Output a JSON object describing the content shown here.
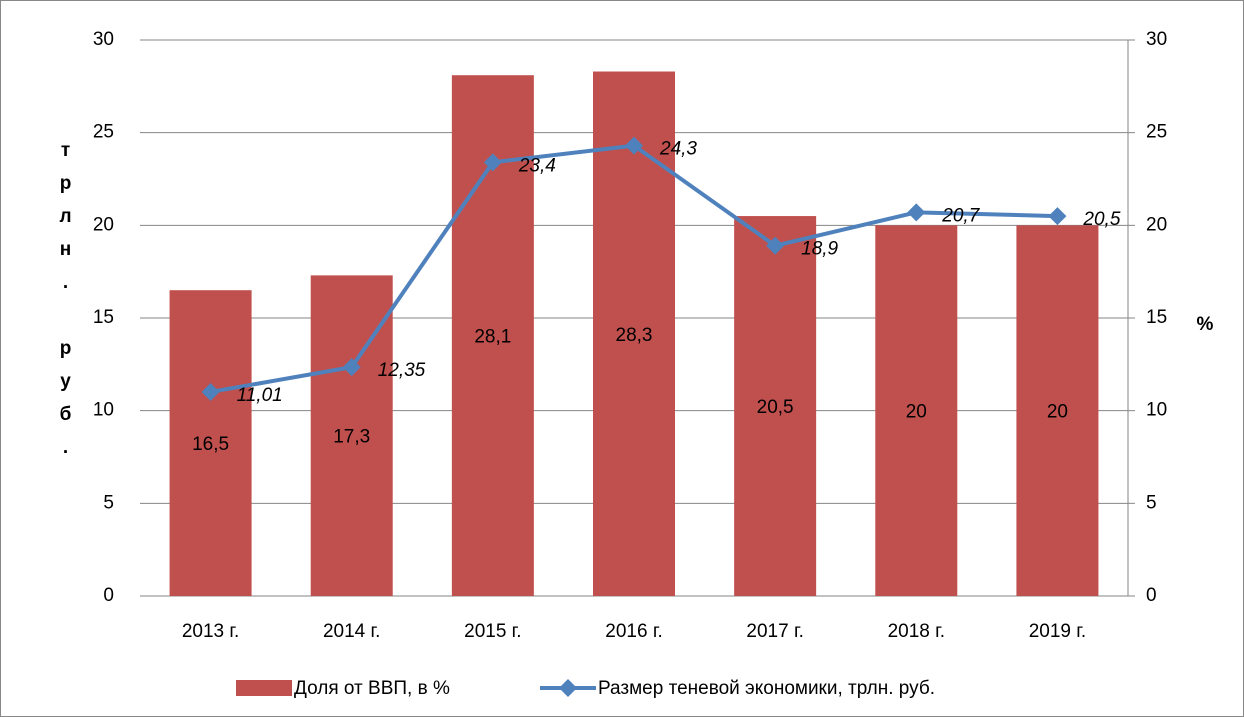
{
  "chart_data": {
    "type": "bar_line",
    "categories": [
      "2013 г.",
      "2014 г.",
      "2015 г.",
      "2016 г.",
      "2017 г.",
      "2018 г.",
      "2019 г."
    ],
    "series": [
      {
        "name": "Доля от ВВП, в %",
        "type": "bar",
        "axis": "y2",
        "color": "#c0504d",
        "values": [
          16.5,
          17.3,
          28.1,
          28.3,
          20.5,
          20,
          20
        ],
        "value_labels": [
          "16,5",
          "17,3",
          "28,1",
          "28,3",
          "20,5",
          "20",
          "20"
        ]
      },
      {
        "name": "Размер теневой экономики, трлн. руб.",
        "type": "line",
        "axis": "y",
        "color": "#4f81bd",
        "values": [
          11.01,
          12.35,
          23.4,
          24.3,
          18.9,
          20.7,
          20.5
        ],
        "value_labels": [
          "11,01",
          "12,35",
          "23,4",
          "24,3",
          "18,9",
          "20,7",
          "20,5"
        ]
      }
    ],
    "ylabel": "трлн. руб.",
    "y2label": "%",
    "ylim": [
      0,
      30
    ],
    "yticks": [
      0,
      5,
      10,
      15,
      20,
      25,
      30
    ],
    "y2lim": [
      0,
      30
    ],
    "y2ticks": [
      0,
      5,
      10,
      15,
      20,
      25,
      30
    ],
    "grid": true,
    "legend": "bottom"
  }
}
